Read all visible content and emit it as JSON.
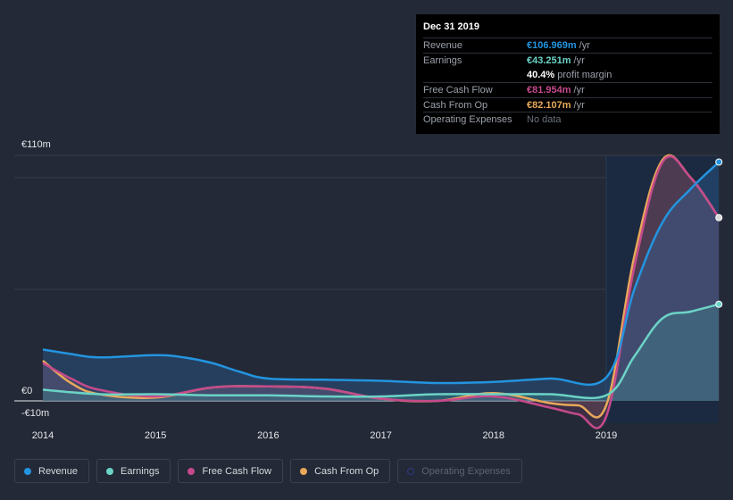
{
  "tooltip": {
    "date": "Dec 31 2019",
    "rows": [
      {
        "label": "Revenue",
        "value": "€106.969m",
        "unit": "/yr",
        "color": "#2394df"
      },
      {
        "label": "Earnings",
        "value": "€43.251m",
        "unit": "/yr",
        "color": "#6cd3c6"
      },
      {
        "label": "",
        "value": "40.4%",
        "unit": "profit margin",
        "color": "#ffffff"
      },
      {
        "label": "Free Cash Flow",
        "value": "€81.954m",
        "unit": "/yr",
        "color": "#c54a8c"
      },
      {
        "label": "Cash From Op",
        "value": "€82.107m",
        "unit": "/yr",
        "color": "#e8a85a"
      },
      {
        "label": "Operating Expenses",
        "value": "No data",
        "unit": "",
        "color": "#6b717c"
      }
    ]
  },
  "legend": [
    {
      "label": "Revenue",
      "color": "#2394df",
      "enabled": true
    },
    {
      "label": "Earnings",
      "color": "#6cd3c6",
      "enabled": true
    },
    {
      "label": "Free Cash Flow",
      "color": "#c54a8c",
      "enabled": true
    },
    {
      "label": "Cash From Op",
      "color": "#e8a85a",
      "enabled": true
    },
    {
      "label": "Operating Expenses",
      "color": "#2f3a8a",
      "enabled": false
    }
  ],
  "chart_data": {
    "type": "area",
    "ylim": [
      -10,
      110
    ],
    "y_tick_labels": [
      "€110m",
      "€0",
      "-€10m"
    ],
    "y_ticks": [
      110,
      0,
      -10
    ],
    "x_tick_labels": [
      "2014",
      "2015",
      "2016",
      "2017",
      "2018",
      "2019"
    ],
    "x_ticks": [
      2014,
      2015,
      2016,
      2017,
      2018,
      2019
    ],
    "xlim": [
      2014,
      2020
    ],
    "highlight_from": 2019,
    "grid": true,
    "series": [
      {
        "name": "Revenue",
        "color": "#2394df",
        "x": [
          2014,
          2014.25,
          2014.5,
          2015,
          2015.25,
          2015.5,
          2015.75,
          2016,
          2016.5,
          2017,
          2017.5,
          2018,
          2018.5,
          2019,
          2019.25,
          2019.5,
          2019.75,
          2020
        ],
        "values": [
          23,
          21,
          19.5,
          20.5,
          19.5,
          17,
          13,
          10,
          9.5,
          9,
          8,
          8.5,
          10,
          10.5,
          50,
          80,
          95,
          107
        ]
      },
      {
        "name": "Earnings",
        "color": "#6cd3c6",
        "x": [
          2014,
          2014.5,
          2015,
          2015.5,
          2016,
          2016.5,
          2017,
          2017.5,
          2018,
          2018.5,
          2019,
          2019.25,
          2019.5,
          2019.75,
          2020
        ],
        "values": [
          5,
          3,
          3,
          2.5,
          2.5,
          2,
          2,
          3,
          3,
          3,
          2.5,
          20,
          37,
          40,
          43.3
        ]
      },
      {
        "name": "Free Cash Flow",
        "color": "#c54a8c",
        "x": [
          2014,
          2014.25,
          2014.5,
          2015,
          2015.5,
          2016,
          2016.5,
          2017,
          2017.5,
          2018,
          2018.5,
          2018.75,
          2019,
          2019.25,
          2019.5,
          2019.75,
          2020
        ],
        "values": [
          17,
          10,
          5,
          2,
          6,
          6.5,
          5.5,
          1,
          0,
          2,
          -3,
          -6,
          -7,
          60,
          107,
          100,
          82
        ]
      },
      {
        "name": "Cash From Op",
        "color": "#e8a85a",
        "x": [
          2014,
          2014.25,
          2014.5,
          2015,
          2015.5,
          2016,
          2016.5,
          2017,
          2017.5,
          2018,
          2018.5,
          2018.75,
          2019,
          2019.25,
          2019.5,
          2019.75,
          2020
        ],
        "values": [
          18,
          8,
          3,
          1.5,
          6,
          6.5,
          5.5,
          1,
          0,
          3.5,
          -1,
          -2,
          -2,
          65,
          108,
          100,
          82.1
        ]
      }
    ]
  }
}
